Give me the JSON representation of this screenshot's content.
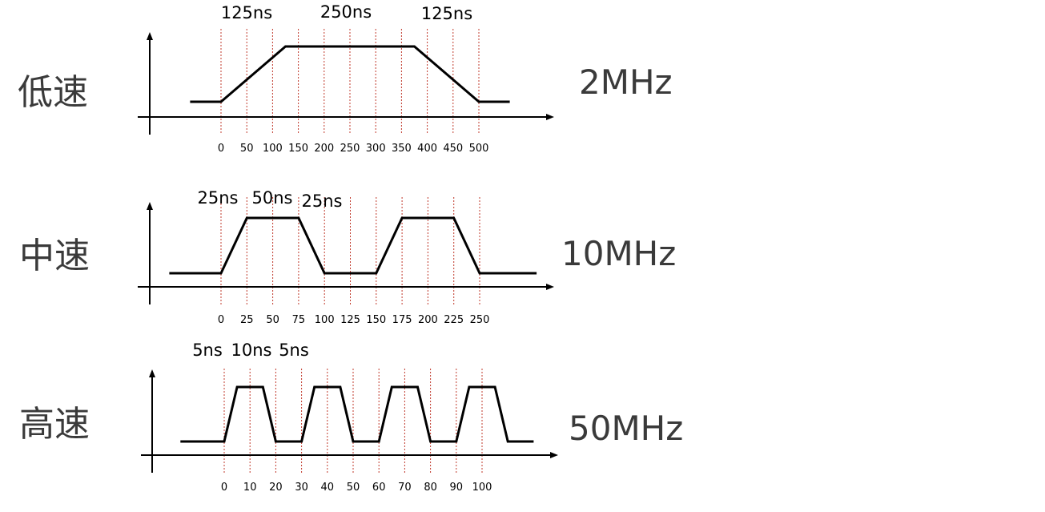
{
  "panels": [
    {
      "id": "low",
      "label": "低速",
      "frequency": "2MHz",
      "durations": [
        "125ns",
        "250ns",
        "125ns"
      ],
      "ticks": [
        "0",
        "50",
        "100",
        "150",
        "200",
        "250",
        "300",
        "350",
        "400",
        "450",
        "500"
      ],
      "waveform_ns": [
        [
          -60,
          0
        ],
        [
          0,
          0
        ],
        [
          125,
          1
        ],
        [
          375,
          1
        ],
        [
          500,
          0
        ],
        [
          560,
          0
        ]
      ]
    },
    {
      "id": "mid",
      "label": "中速",
      "frequency": "10MHz",
      "durations": [
        "25ns",
        "50ns",
        "25ns"
      ],
      "ticks": [
        "0",
        "25",
        "50",
        "75",
        "100",
        "125",
        "150",
        "175",
        "200",
        "225",
        "250"
      ],
      "waveform_ns": [
        [
          -50,
          0
        ],
        [
          0,
          0
        ],
        [
          25,
          1
        ],
        [
          75,
          1
        ],
        [
          100,
          0
        ],
        [
          150,
          0
        ],
        [
          175,
          1
        ],
        [
          225,
          1
        ],
        [
          250,
          0
        ],
        [
          305,
          0
        ]
      ]
    },
    {
      "id": "high",
      "label": "高速",
      "frequency": "50MHz",
      "durations": [
        "5ns",
        "10ns",
        "5ns"
      ],
      "ticks": [
        "0",
        "10",
        "20",
        "30",
        "40",
        "50",
        "60",
        "70",
        "80",
        "90",
        "100"
      ],
      "waveform_ns": [
        [
          -17,
          0
        ],
        [
          0,
          0
        ],
        [
          5,
          1
        ],
        [
          15,
          1
        ],
        [
          20,
          0
        ],
        [
          30,
          0
        ],
        [
          35,
          1
        ],
        [
          45,
          1
        ],
        [
          50,
          0
        ],
        [
          60,
          0
        ],
        [
          65,
          1
        ],
        [
          75,
          1
        ],
        [
          80,
          0
        ],
        [
          90,
          0
        ],
        [
          95,
          1
        ],
        [
          105,
          1
        ],
        [
          110,
          0
        ],
        [
          120,
          0
        ]
      ]
    }
  ],
  "colors": {
    "grid": "#c0392b",
    "axis": "#000000",
    "wave": "#000000",
    "label": "#3a3a3a"
  }
}
